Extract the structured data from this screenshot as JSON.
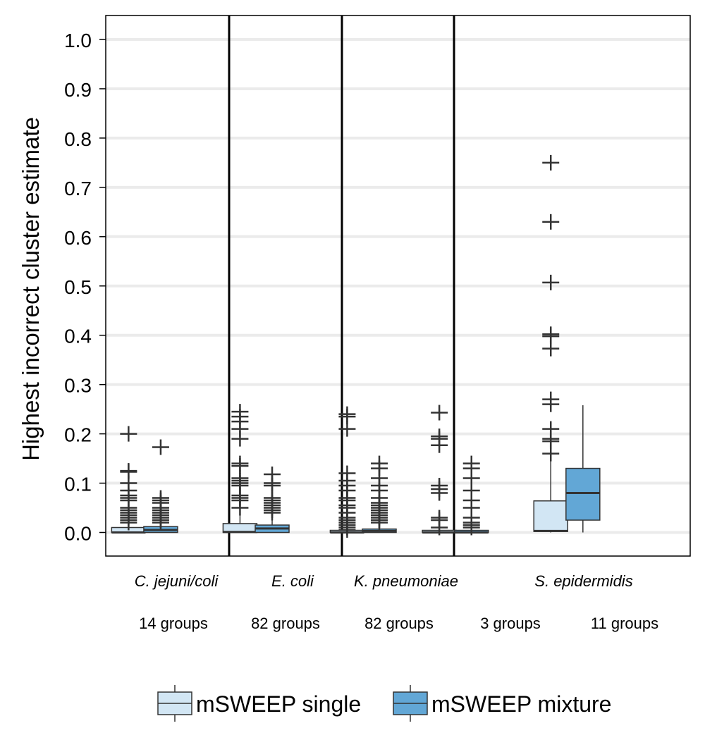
{
  "chart_data": {
    "type": "boxplot",
    "ylabel": "Highest incorrect cluster estimate",
    "ylim": [
      -0.05,
      1.05
    ],
    "yticks": [
      "0.0",
      "0.1",
      "0.2",
      "0.3",
      "0.4",
      "0.5",
      "0.6",
      "0.7",
      "0.8",
      "0.9",
      "1.0"
    ],
    "grid": true,
    "legend_position": "bottom",
    "colors": {
      "single": "#d2e6f4",
      "mixture": "#62a7d6",
      "stroke": "#333333"
    },
    "species": [
      {
        "name": "C. jejuni/coli"
      },
      {
        "name": "E. coli"
      },
      {
        "name": "K. pneumoniae"
      },
      {
        "name": "S. epidermidis"
      }
    ],
    "group_labels": [
      "14 groups",
      "82 groups",
      "82 groups",
      "3 groups",
      "11 groups"
    ],
    "series": [
      {
        "name": "mSWEEP single",
        "key": "single"
      },
      {
        "name": "mSWEEP mixture",
        "key": "mixture"
      }
    ],
    "boxes": [
      {
        "series": "single",
        "x": 0.92,
        "q1": 0.0,
        "median": 0.0,
        "q3": 0.01,
        "low": 0.0,
        "high": 0.01,
        "outliers": [
          0.2,
          0.125,
          0.123,
          0.1,
          0.085,
          0.075,
          0.07,
          0.065,
          0.05,
          0.045,
          0.04,
          0.035,
          0.03,
          0.025,
          0.02
        ]
      },
      {
        "series": "mixture",
        "x": 1.22,
        "q1": 0.0,
        "median": 0.005,
        "q3": 0.012,
        "low": 0.0,
        "high": 0.012,
        "outliers": [
          0.173,
          0.07,
          0.065,
          0.06,
          0.05,
          0.045,
          0.04,
          0.035,
          0.03,
          0.025,
          0.02
        ]
      },
      {
        "series": "single",
        "x": 1.96,
        "q1": 0.0,
        "median": 0.001,
        "q3": 0.018,
        "low": 0.0,
        "high": 0.045,
        "outliers": [
          0.245,
          0.235,
          0.225,
          0.21,
          0.19,
          0.14,
          0.135,
          0.11,
          0.105,
          0.1,
          0.095,
          0.075,
          0.07,
          0.065,
          0.05
        ]
      },
      {
        "series": "mixture",
        "x": 2.26,
        "q1": 0.0,
        "median": 0.008,
        "q3": 0.015,
        "low": 0.0,
        "high": 0.035,
        "outliers": [
          0.118,
          0.1,
          0.095,
          0.07,
          0.065,
          0.06,
          0.055,
          0.05,
          0.045,
          0.04
        ]
      },
      {
        "series": "single",
        "x": 2.96,
        "q1": 0.0,
        "median": 0.0,
        "q3": 0.001,
        "low": 0.0,
        "high": 0.001,
        "outliers": [
          0.24,
          0.235,
          0.21,
          0.12,
          0.105,
          0.095,
          0.085,
          0.07,
          0.065,
          0.055,
          0.05,
          0.04,
          0.03,
          0.025,
          0.02,
          0.015,
          0.01,
          0.005
        ]
      },
      {
        "series": "mixture",
        "x": 3.26,
        "q1": 0.0,
        "median": 0.003,
        "q3": 0.007,
        "low": 0.0,
        "high": 0.015,
        "outliers": [
          0.14,
          0.13,
          0.11,
          0.095,
          0.085,
          0.07,
          0.06,
          0.055,
          0.05,
          0.045,
          0.04,
          0.035,
          0.03,
          0.025,
          0.02
        ]
      },
      {
        "series": "single",
        "x": 3.82,
        "q1": 0.0,
        "median": 0.0,
        "q3": 0.001,
        "low": 0.0,
        "high": 0.001,
        "outliers": [
          0.243,
          0.195,
          0.19,
          0.177,
          0.095,
          0.088,
          0.08,
          0.03,
          0.025,
          0.01
        ]
      },
      {
        "series": "mixture",
        "x": 4.12,
        "q1": 0.0,
        "median": 0.0,
        "q3": 0.001,
        "low": 0.0,
        "high": 0.001,
        "outliers": [
          0.14,
          0.13,
          0.11,
          0.085,
          0.065,
          0.05,
          0.03,
          0.02,
          0.015,
          0.01
        ]
      },
      {
        "series": "single",
        "x": 4.86,
        "q1": 0.002,
        "median": 0.003,
        "q3": 0.064,
        "low": 0.0,
        "high": 0.155,
        "outliers": [
          0.75,
          0.63,
          0.507,
          0.402,
          0.398,
          0.373,
          0.27,
          0.26,
          0.21,
          0.19,
          0.185,
          0.16
        ]
      },
      {
        "series": "mixture",
        "x": 5.16,
        "q1": 0.025,
        "median": 0.08,
        "q3": 0.13,
        "low": 0.0,
        "high": 0.258,
        "outliers": []
      }
    ]
  }
}
